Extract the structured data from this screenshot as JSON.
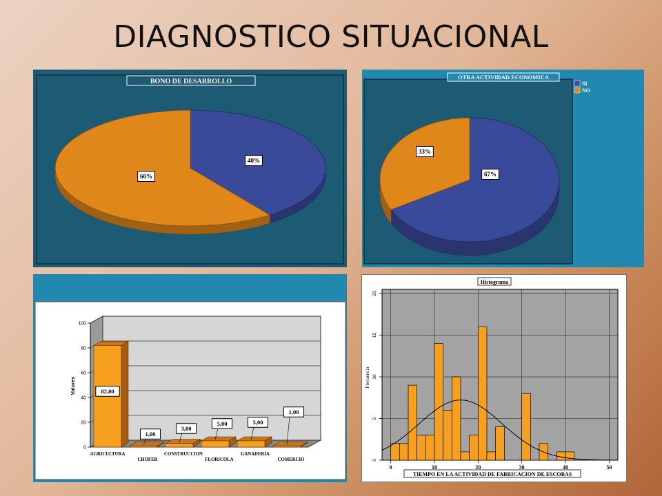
{
  "page": {
    "title": "DIAGNOSTICO SITUACIONAL"
  },
  "colors": {
    "orange": "#e0871c",
    "blue": "#3a4a9a",
    "panel_dark": "#1d5a74",
    "panel_light": "#2388b0"
  },
  "chart_data": [
    {
      "type": "pie",
      "title": "BONO DE DESARROLLO",
      "slices": [
        {
          "label": "40%",
          "value": 40,
          "color": "#3a4a9a"
        },
        {
          "label": "60%",
          "value": 60,
          "color": "#e0871c"
        }
      ]
    },
    {
      "type": "pie",
      "title": "OTRA ACTIVIDAD ECONOMICA",
      "legend": [
        "SI",
        "NO"
      ],
      "legend_position": "top-right",
      "slices": [
        {
          "label": "67%",
          "value": 67,
          "color": "#3a4a9a"
        },
        {
          "label": "33%",
          "value": 33,
          "color": "#e0871c"
        }
      ]
    },
    {
      "type": "bar",
      "ylabel": "Valores",
      "ylim": [
        0,
        100
      ],
      "yticks": [
        "0",
        "20",
        "40",
        "60",
        "80",
        "100"
      ],
      "grid": true,
      "categories": [
        "AGRICULTURA",
        "CHOFER",
        "CONSTRUCCION",
        "FLORICOLA",
        "GANADERIA",
        "COMERCIO"
      ],
      "values": [
        82,
        1,
        3,
        5,
        5,
        1
      ],
      "value_labels": [
        "82,00",
        "1,00",
        "3,00",
        "5,00",
        "5,00",
        "1,00"
      ]
    },
    {
      "type": "bar",
      "subtype": "histogram",
      "title": "Histograma",
      "xlabel": "TIEMPO EN LA ACTIVIDAD DE FABRICACION DE ESCOBAS",
      "ylabel": "Frecuencia",
      "xlim": [
        -2,
        52
      ],
      "ylim": [
        0,
        20.5
      ],
      "xticks": [
        "0",
        "10",
        "20",
        "30",
        "40",
        "50"
      ],
      "yticks": [
        "0",
        "5",
        "10",
        "15",
        "20"
      ],
      "grid": true,
      "bin_width": 2,
      "bins_start": [
        0,
        2,
        4,
        6,
        8,
        10,
        12,
        14,
        16,
        18,
        20,
        22,
        24,
        30,
        34,
        38,
        40
      ],
      "counts": [
        2,
        2,
        9,
        3,
        3,
        14,
        6,
        10,
        1,
        3,
        16,
        1,
        4,
        8,
        2,
        1,
        1
      ],
      "normal_curve": {
        "mean": 16,
        "sd": 9.5,
        "n": 86
      }
    }
  ]
}
